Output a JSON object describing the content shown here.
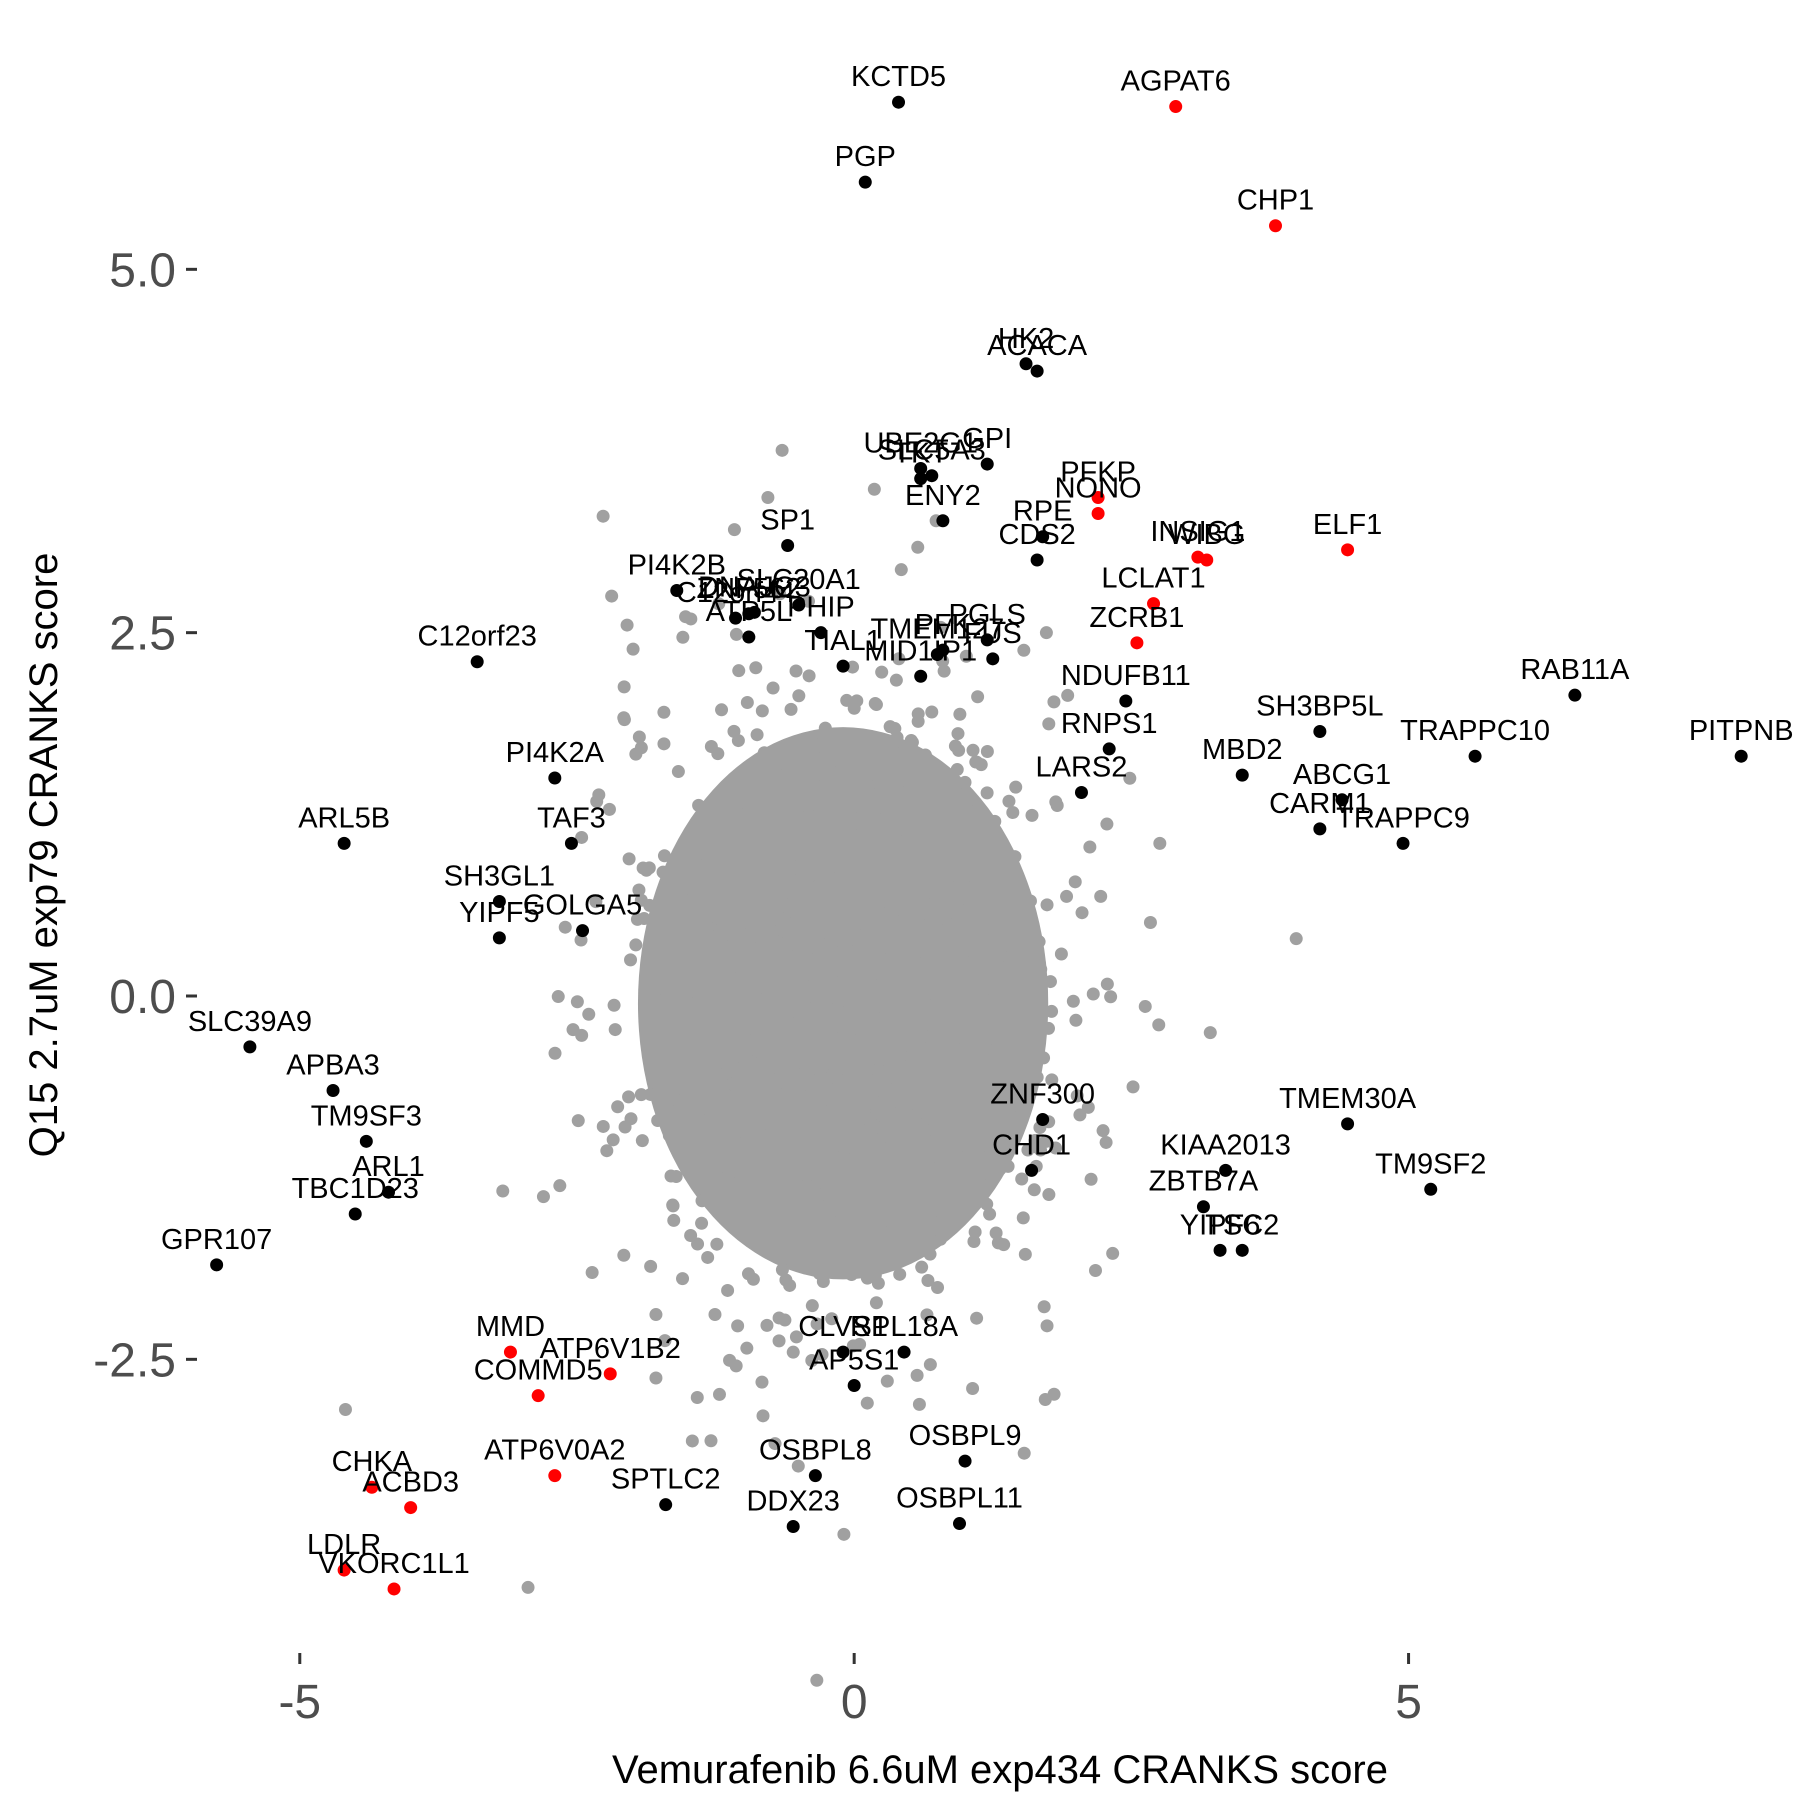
{
  "chart_data": {
    "type": "scatter",
    "xlabel": "Vemurafenib 6.6uM exp434 CRANKS score",
    "ylabel": "Q15 2.7uM exp79 CRANKS score",
    "xlim": [
      -5.9,
      8.35
    ],
    "ylim": [
      -4.5,
      6.75
    ],
    "x_ticks": [
      -5,
      0,
      5
    ],
    "x_tick_labels": [
      "-5",
      "0",
      "5"
    ],
    "y_ticks": [
      -2.5,
      0,
      2.5,
      5
    ],
    "y_tick_labels": [
      "-2.5",
      "0.0",
      "2.5",
      "5.0"
    ],
    "grid": false,
    "legend": "none",
    "colors": {
      "background": "#f0f0f0",
      "labeled": "#000000",
      "highlight": "#ff0000"
    },
    "background_cloud": {
      "color": "#a0a0a0",
      "core": {
        "cx": -0.1,
        "cy": -0.05,
        "rx": 1.85,
        "ry": 1.9
      },
      "approx_n": 18000
    },
    "points": [
      {
        "label": "KCTD5",
        "x": 0.4,
        "y": 6.15,
        "color": "black"
      },
      {
        "label": "AGPAT6",
        "x": 2.9,
        "y": 6.12,
        "color": "red"
      },
      {
        "label": "PGP",
        "x": 0.1,
        "y": 5.6,
        "color": "black"
      },
      {
        "label": "CHP1",
        "x": 3.8,
        "y": 5.3,
        "color": "red"
      },
      {
        "label": "HK2",
        "x": 1.55,
        "y": 4.35,
        "color": "black"
      },
      {
        "label": "ACACA",
        "x": 1.65,
        "y": 4.3,
        "color": "black"
      },
      {
        "label": "UBE2G1",
        "x": 0.6,
        "y": 3.63,
        "color": "black"
      },
      {
        "label": "GPI",
        "x": 1.2,
        "y": 3.66,
        "color": "black"
      },
      {
        "label": "SLC5A3",
        "x": 0.7,
        "y": 3.58,
        "color": "black"
      },
      {
        "label": "TKT",
        "x": 0.6,
        "y": 3.56,
        "color": "black"
      },
      {
        "label": "RPE",
        "x": 1.7,
        "y": 3.16,
        "color": "black"
      },
      {
        "label": "PFKP",
        "x": 2.2,
        "y": 3.43,
        "color": "red"
      },
      {
        "label": "NONO",
        "x": 2.2,
        "y": 3.32,
        "color": "red"
      },
      {
        "label": "INSIG1",
        "x": 3.1,
        "y": 3.02,
        "color": "red"
      },
      {
        "label": "WIBG",
        "x": 3.18,
        "y": 3.0,
        "color": "red"
      },
      {
        "label": "ELF1",
        "x": 4.45,
        "y": 3.07,
        "color": "red"
      },
      {
        "label": "ENY2",
        "x": 0.8,
        "y": 3.27,
        "color": "black"
      },
      {
        "label": "CDS2",
        "x": 1.65,
        "y": 3.0,
        "color": "black"
      },
      {
        "label": "SP1",
        "x": -0.6,
        "y": 3.1,
        "color": "black"
      },
      {
        "label": "DNAJC3",
        "x": -0.9,
        "y": 2.64,
        "color": "black"
      },
      {
        "label": "PI4K2B",
        "x": -1.6,
        "y": 2.79,
        "color": "black"
      },
      {
        "label": "SLC20A1",
        "x": -0.5,
        "y": 2.69,
        "color": "black"
      },
      {
        "label": "C12orf44",
        "x": -1.07,
        "y": 2.6,
        "color": "black"
      },
      {
        "label": "ATP5L",
        "x": -0.95,
        "y": 2.47,
        "color": "black"
      },
      {
        "label": "PHIP",
        "x": -0.3,
        "y": 2.5,
        "color": "black"
      },
      {
        "label": "PFK",
        "x": 0.8,
        "y": 2.38,
        "color": "black"
      },
      {
        "label": "PGLS",
        "x": 1.2,
        "y": 2.45,
        "color": "black"
      },
      {
        "label": "LCLAT1",
        "x": 2.7,
        "y": 2.7,
        "color": "red"
      },
      {
        "label": "ZCRB1",
        "x": 2.55,
        "y": 2.43,
        "color": "red"
      },
      {
        "label": "C12orf23",
        "x": -3.4,
        "y": 2.3,
        "color": "black"
      },
      {
        "label": "ZNF562",
        "x": -0.95,
        "y": 2.63,
        "color": "black"
      },
      {
        "label": "TIAL1",
        "x": -0.1,
        "y": 2.27,
        "color": "black"
      },
      {
        "label": "FUS",
        "x": 1.25,
        "y": 2.32,
        "color": "black"
      },
      {
        "label": "NDUFB11",
        "x": 2.45,
        "y": 2.03,
        "color": "black"
      },
      {
        "label": "SH3BP5L",
        "x": 4.2,
        "y": 1.82,
        "color": "black"
      },
      {
        "label": "RAB11A",
        "x": 6.5,
        "y": 2.07,
        "color": "black"
      },
      {
        "label": "TMEM127",
        "x": 0.75,
        "y": 2.35,
        "color": "black"
      },
      {
        "label": "MID1IP1",
        "x": 0.6,
        "y": 2.2,
        "color": "black"
      },
      {
        "label": "RNPS1",
        "x": 2.3,
        "y": 1.7,
        "color": "black"
      },
      {
        "label": "MBD2",
        "x": 3.5,
        "y": 1.52,
        "color": "black"
      },
      {
        "label": "TRAPPC10",
        "x": 5.6,
        "y": 1.65,
        "color": "black"
      },
      {
        "label": "PITPNB",
        "x": 8.0,
        "y": 1.65,
        "color": "black"
      },
      {
        "label": "LARS2",
        "x": 2.05,
        "y": 1.4,
        "color": "black"
      },
      {
        "label": "PI4K2A",
        "x": -2.7,
        "y": 1.5,
        "color": "black"
      },
      {
        "label": "ABCG1",
        "x": 4.4,
        "y": 1.35,
        "color": "black"
      },
      {
        "label": "ARL5B",
        "x": -4.6,
        "y": 1.05,
        "color": "black"
      },
      {
        "label": "TAF3",
        "x": -2.55,
        "y": 1.05,
        "color": "black"
      },
      {
        "label": "CARM1",
        "x": 4.2,
        "y": 1.15,
        "color": "black"
      },
      {
        "label": "TRAPPC9",
        "x": 4.95,
        "y": 1.05,
        "color": "black"
      },
      {
        "label": "SH3GL1",
        "x": -3.2,
        "y": 0.65,
        "color": "black"
      },
      {
        "label": "GOLGA5",
        "x": -2.45,
        "y": 0.45,
        "color": "black"
      },
      {
        "label": "YIPF5",
        "x": -3.2,
        "y": 0.4,
        "color": "black"
      },
      {
        "label": "SLC39A9",
        "x": -5.45,
        "y": -0.35,
        "color": "black"
      },
      {
        "label": "APBA3",
        "x": -4.7,
        "y": -0.65,
        "color": "black"
      },
      {
        "label": "ZNF300",
        "x": 1.7,
        "y": -0.85,
        "color": "black"
      },
      {
        "label": "TMEM30A",
        "x": 4.45,
        "y": -0.88,
        "color": "black"
      },
      {
        "label": "TM9SF3",
        "x": -4.4,
        "y": -1.0,
        "color": "black"
      },
      {
        "label": "CHD1",
        "x": 1.6,
        "y": -1.2,
        "color": "black"
      },
      {
        "label": "KIAA2013",
        "x": 3.35,
        "y": -1.2,
        "color": "black"
      },
      {
        "label": "ARL1",
        "x": -4.2,
        "y": -1.35,
        "color": "black"
      },
      {
        "label": "ZBTB7A",
        "x": 3.15,
        "y": -1.45,
        "color": "black"
      },
      {
        "label": "TM9SF2",
        "x": 5.2,
        "y": -1.33,
        "color": "black"
      },
      {
        "label": "TBC1D23",
        "x": -4.5,
        "y": -1.5,
        "color": "black"
      },
      {
        "label": "TSC2",
        "x": 3.5,
        "y": -1.75,
        "color": "black"
      },
      {
        "label": "YIPF6",
        "x": 3.3,
        "y": -1.75,
        "color": "black"
      },
      {
        "label": "GPR107",
        "x": -5.75,
        "y": -1.85,
        "color": "black"
      },
      {
        "label": "CLVS1",
        "x": -0.1,
        "y": -2.45,
        "color": "black"
      },
      {
        "label": "RPL18A",
        "x": 0.45,
        "y": -2.45,
        "color": "black"
      },
      {
        "label": "MMD",
        "x": -3.1,
        "y": -2.45,
        "color": "red"
      },
      {
        "label": "ATP6V1B2",
        "x": -2.2,
        "y": -2.6,
        "color": "red"
      },
      {
        "label": "AP5S1",
        "x": 0.0,
        "y": -2.68,
        "color": "black"
      },
      {
        "label": "COMMD5",
        "x": -2.85,
        "y": -2.75,
        "color": "red"
      },
      {
        "label": "OSBPL8",
        "x": -0.35,
        "y": -3.3,
        "color": "black"
      },
      {
        "label": "OSBPL9",
        "x": 1.0,
        "y": -3.2,
        "color": "black"
      },
      {
        "label": "CHKA",
        "x": -4.35,
        "y": -3.38,
        "color": "red"
      },
      {
        "label": "ATP6V0A2",
        "x": -2.7,
        "y": -3.3,
        "color": "red"
      },
      {
        "label": "ACBD3",
        "x": -4.0,
        "y": -3.52,
        "color": "red"
      },
      {
        "label": "SPTLC2",
        "x": -1.7,
        "y": -3.5,
        "color": "black"
      },
      {
        "label": "DDX23",
        "x": -0.55,
        "y": -3.65,
        "color": "black"
      },
      {
        "label": "OSBPL11",
        "x": 0.95,
        "y": -3.63,
        "color": "black"
      },
      {
        "label": "LDLR",
        "x": -4.6,
        "y": -3.95,
        "color": "red"
      },
      {
        "label": "VKORC1L1",
        "x": -4.15,
        "y": -4.08,
        "color": "red"
      }
    ]
  }
}
